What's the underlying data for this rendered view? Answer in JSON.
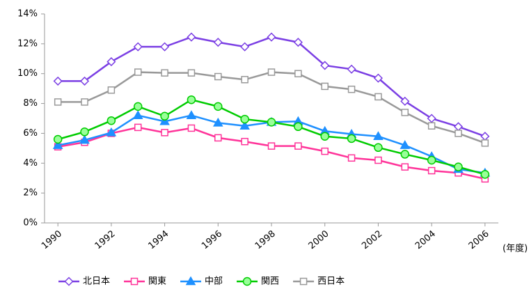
{
  "chart_data": {
    "type": "line",
    "x_label": "(年度)",
    "x": [
      1990,
      1991,
      1992,
      1993,
      1994,
      1995,
      1996,
      1997,
      1998,
      1999,
      2000,
      2001,
      2002,
      2003,
      2004,
      2005,
      2006
    ],
    "xlim": [
      1989.5,
      2006.5
    ],
    "xticks": [
      1990,
      1992,
      1994,
      1996,
      1998,
      2000,
      2002,
      2004,
      2006
    ],
    "ylim": [
      0,
      14
    ],
    "yticks": [
      {
        "value": 0,
        "label": "0%"
      },
      {
        "value": 2,
        "label": "2%"
      },
      {
        "value": 4,
        "label": "4%"
      },
      {
        "value": 6,
        "label": "6%"
      },
      {
        "value": 8,
        "label": "8%"
      },
      {
        "value": 10,
        "label": "10%"
      },
      {
        "value": 12,
        "label": "12%"
      },
      {
        "value": 14,
        "label": "14%"
      }
    ],
    "grid": false,
    "legend": "bottom",
    "series": [
      {
        "name": "北日本",
        "color": "#7b3fe4",
        "marker": "diamond",
        "values": [
          9.5,
          9.5,
          10.8,
          11.8,
          11.8,
          12.45,
          12.1,
          11.8,
          12.45,
          12.1,
          10.55,
          10.3,
          9.7,
          8.15,
          7.0,
          6.45,
          5.8
        ]
      },
      {
        "name": "関東",
        "color": "#ff3399",
        "marker": "square",
        "values": [
          5.1,
          5.4,
          6.0,
          6.4,
          6.05,
          6.35,
          5.7,
          5.45,
          5.15,
          5.15,
          4.8,
          4.35,
          4.2,
          3.75,
          3.5,
          3.35,
          2.95
        ]
      },
      {
        "name": "中部",
        "color": "#1e90ff",
        "marker": "triangle",
        "values": [
          5.2,
          5.55,
          6.05,
          7.2,
          6.8,
          7.2,
          6.7,
          6.5,
          6.75,
          6.8,
          6.15,
          5.95,
          5.8,
          5.2,
          4.45,
          3.6,
          3.35
        ]
      },
      {
        "name": "関西",
        "color": "#00cc00",
        "marker": "circle",
        "values": [
          5.6,
          6.1,
          6.85,
          7.8,
          7.15,
          8.25,
          7.8,
          6.95,
          6.75,
          6.45,
          5.8,
          5.65,
          5.05,
          4.6,
          4.2,
          3.75,
          3.25
        ]
      },
      {
        "name": "西日本",
        "color": "#999999",
        "marker": "square",
        "values": [
          8.1,
          8.1,
          8.9,
          10.1,
          10.05,
          10.05,
          9.8,
          9.6,
          10.1,
          10.0,
          9.15,
          8.95,
          8.45,
          7.4,
          6.5,
          6.0,
          5.35
        ]
      }
    ]
  }
}
